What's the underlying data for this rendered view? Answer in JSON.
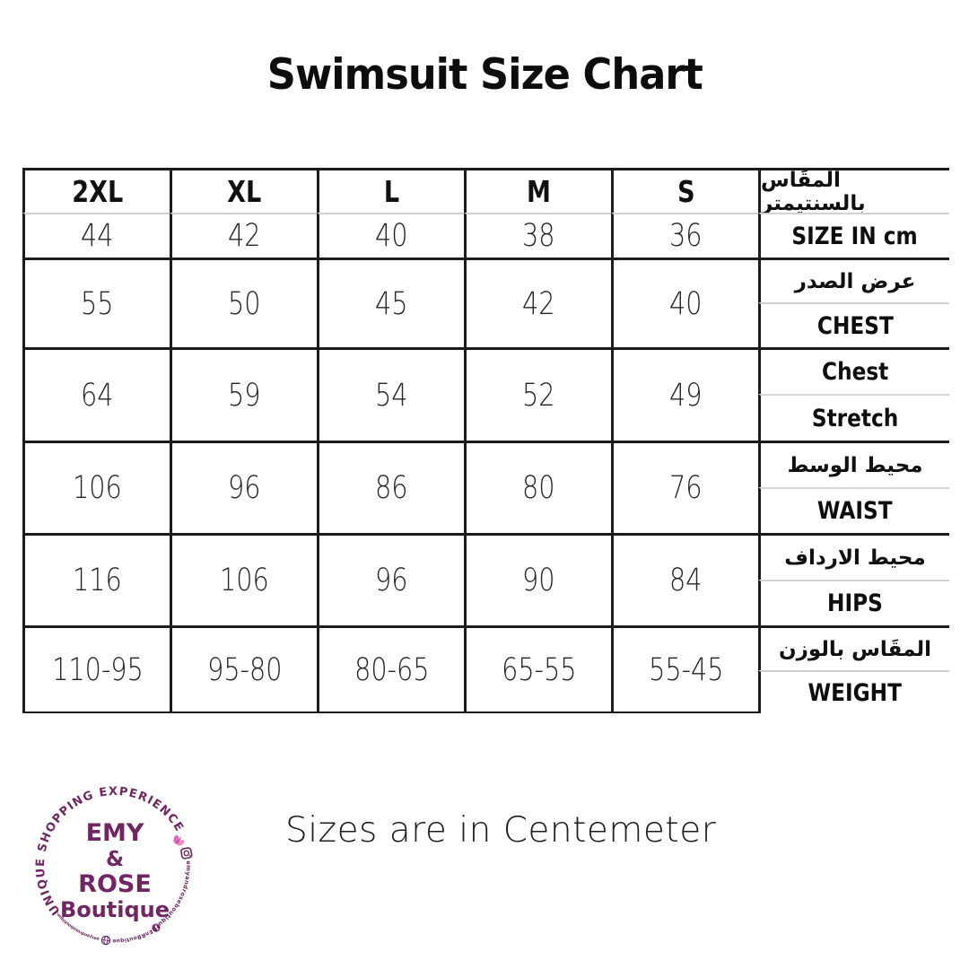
{
  "page": {
    "title": "Swimsuit Size Chart",
    "note": "Sizes are in Centemeter"
  },
  "chart_data": {
    "type": "table",
    "title": "Swimsuit Size Chart",
    "columns": [
      "2XL",
      "XL",
      "L",
      "M",
      "S"
    ],
    "row_groups": [
      {
        "label_top": "المقَاس بالسنتيمتر",
        "label_bottom": "SIZE IN cm",
        "values": [
          "44",
          "42",
          "40",
          "38",
          "36"
        ]
      },
      {
        "label_top": "عرض الصدر",
        "label_bottom": "CHEST",
        "values": [
          "55",
          "50",
          "45",
          "42",
          "40"
        ]
      },
      {
        "label_top": "Chest",
        "label_bottom": "Stretch",
        "values": [
          "64",
          "59",
          "54",
          "52",
          "49"
        ]
      },
      {
        "label_top": "محيط الوسط",
        "label_bottom": "WAIST",
        "values": [
          "106",
          "96",
          "86",
          "80",
          "76"
        ]
      },
      {
        "label_top": "محيط الارداف",
        "label_bottom": "HIPS",
        "values": [
          "116",
          "106",
          "96",
          "90",
          "84"
        ]
      },
      {
        "label_top": "المقَاس بالوزن",
        "label_bottom": "WEIGHT",
        "values": [
          "110-95",
          "95-80",
          "80-65",
          "65-55",
          "55-45"
        ]
      }
    ],
    "note": "Sizes are in Centemeter"
  },
  "logo": {
    "arc_text": "UNIQUE SHOPPING EXPERIENCE",
    "line1": "EMY",
    "line2": "&",
    "line3": "ROSE",
    "line4": "Boutique",
    "instagram_handle": "emyandroseboutique",
    "facebook_handle": "EnRBoutique",
    "website": "emyandroseboutique.com"
  },
  "colors": {
    "purple": "#6f2663",
    "pink": "#df67b6",
    "line_dark": "#1c1c1c",
    "line_light": "#d2d2d2"
  }
}
